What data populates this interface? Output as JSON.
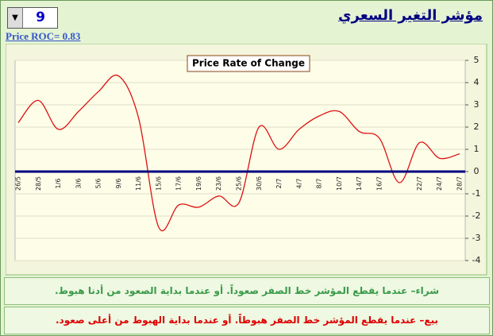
{
  "header": {
    "title": "مؤشر التغير السعري",
    "period": "9",
    "roc_label": "Price ROC= 0.83"
  },
  "chart_data": {
    "type": "line",
    "title": "Price Rate of Change",
    "categories": [
      "26/5",
      "28/5",
      "1/6",
      "3/6",
      "5/6",
      "9/6",
      "11/6",
      "15/6",
      "17/6",
      "19/6",
      "23/6",
      "25/6",
      "30/6",
      "2/7",
      "4/7",
      "8/7",
      "10/7",
      "14/7",
      "16/7",
      null,
      "22/7",
      "24/7",
      "28/7"
    ],
    "series": [
      {
        "name": "Price ROC",
        "color": "#dd1111",
        "values": [
          2.2,
          3.2,
          1.9,
          2.7,
          3.6,
          4.3,
          2.4,
          -2.5,
          -1.5,
          -1.6,
          -1.1,
          -1.4,
          2.0,
          1.0,
          1.9,
          2.5,
          2.7,
          1.8,
          1.5,
          -0.5,
          1.3,
          0.6,
          0.8
        ]
      }
    ],
    "ylim": [
      -4,
      5
    ],
    "yticks": [
      -4,
      -3,
      -2,
      -1,
      0,
      1,
      2,
      3,
      4,
      5
    ],
    "grid": true,
    "zero_line_color": "#000080"
  },
  "notes": {
    "buy": "شراء– عندما يقطع المؤشر خط الصفر صعوداً. أو عندما بداية الصعود من أدنا هبوط.",
    "sell": "بيع– عندما يقطع المؤشر خط الصفر هبوطاً. أو عندما بداية الهبوط من أعلى صعود."
  }
}
